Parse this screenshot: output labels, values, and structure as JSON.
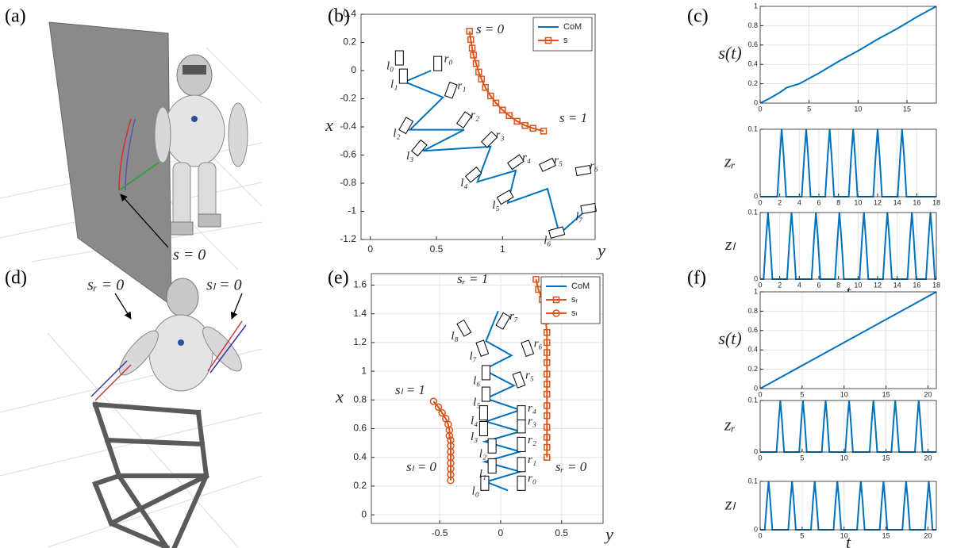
{
  "panels": {
    "a": {
      "label": "(a)",
      "annotation": "s = 0"
    },
    "d": {
      "label": "(d)",
      "annotations": [
        "sᵣ = 0",
        "sₗ = 0"
      ]
    }
  },
  "chart_data": [
    {
      "type": "line",
      "panel": "(b)",
      "xlabel": "y",
      "ylabel": "x",
      "xlim": [
        -0.07,
        1.7
      ],
      "ylim": [
        -1.2,
        0.4
      ],
      "xticks": [
        0,
        0.5,
        1
      ],
      "yticks": [
        -1.2,
        -1,
        -0.8,
        -0.6,
        -0.4,
        -0.2,
        0,
        0.2,
        0.4
      ],
      "grid": false,
      "legend": "northeast",
      "series": [
        {
          "name": "CoM",
          "color": "#0072bd",
          "x": [
            0.46,
            0.26,
            0.55,
            0.3,
            0.71,
            0.4,
            0.91,
            0.81,
            1.1,
            1.04,
            1.34,
            1.43,
            1.67
          ],
          "values": [
            0.0,
            -0.08,
            -0.19,
            -0.42,
            -0.42,
            -0.57,
            -0.54,
            -0.79,
            -0.71,
            -0.94,
            -0.84,
            -1.16,
            -0.96
          ]
        },
        {
          "name": "s",
          "color": "#d95319",
          "marker": "square",
          "x": [
            0.75,
            0.76,
            0.77,
            0.78,
            0.8,
            0.82,
            0.84,
            0.87,
            0.91,
            0.95,
            1.0,
            1.05,
            1.11,
            1.17,
            1.23,
            1.31
          ],
          "values": [
            0.28,
            0.22,
            0.16,
            0.11,
            0.05,
            -0.01,
            -0.06,
            -0.12,
            -0.18,
            -0.23,
            -0.28,
            -0.32,
            -0.36,
            -0.39,
            -0.41,
            -0.43
          ]
        }
      ],
      "footsteps": {
        "labels": [
          "l₀",
          "r₀",
          "l₁",
          "r₁",
          "l₂",
          "r₂",
          "l₃",
          "r₃",
          "l₄",
          "r₄",
          "l₅",
          "r₅",
          "l₆",
          "r₆",
          "l₇"
        ],
        "x": [
          0.22,
          0.51,
          0.25,
          0.61,
          0.27,
          0.71,
          0.37,
          0.9,
          0.78,
          1.1,
          1.02,
          1.34,
          1.41,
          1.61,
          1.65
        ],
        "values": [
          0.09,
          0.05,
          -0.04,
          -0.14,
          -0.39,
          -0.35,
          -0.55,
          -0.49,
          -0.74,
          -0.65,
          -0.9,
          -0.67,
          -1.15,
          -0.71,
          -0.98
        ],
        "angle": [
          0,
          0,
          0,
          20,
          30,
          35,
          40,
          45,
          50,
          55,
          60,
          65,
          75,
          80,
          80
        ]
      },
      "annotations": [
        "s = 0",
        "s = 1"
      ]
    },
    {
      "type": "line",
      "panel": "(c)",
      "ylabel": "s(t)",
      "xlim": [
        0,
        18
      ],
      "ylim": [
        0,
        1
      ],
      "xticks": [
        0,
        5,
        10,
        15
      ],
      "yticks": [
        0,
        0.2,
        0.4,
        0.6,
        0.8,
        1
      ],
      "grid": true,
      "series": [
        {
          "color": "#0072bd",
          "x": [
            0,
            1,
            2,
            2.7,
            4,
            6,
            8,
            10,
            12,
            14,
            16,
            18
          ],
          "values": [
            0,
            0.05,
            0.11,
            0.16,
            0.2,
            0.31,
            0.43,
            0.54,
            0.66,
            0.77,
            0.89,
            1
          ]
        }
      ]
    },
    {
      "type": "line",
      "ylabel": "zᵣ",
      "xlim": [
        0,
        18
      ],
      "ylim": [
        0,
        0.1
      ],
      "xticks": [
        0,
        2,
        4,
        6,
        8,
        10,
        12,
        14,
        16,
        18
      ],
      "yticks": [
        0,
        0.1
      ],
      "grid": true,
      "series": [
        {
          "color": "#0072bd",
          "x": [
            0,
            1.75,
            2.0,
            2.2,
            2.4,
            2.65,
            4.25,
            4.5,
            4.7,
            4.9,
            5.15,
            6.65,
            6.9,
            7.1,
            7.3,
            7.55,
            9.05,
            9.3,
            9.5,
            9.7,
            9.95,
            11.55,
            11.8,
            12.0,
            12.2,
            12.45,
            14.05,
            14.3,
            14.5,
            14.7,
            14.95,
            18
          ],
          "values": [
            0,
            0,
            0.06,
            0.1,
            0.06,
            0,
            0,
            0.06,
            0.1,
            0.06,
            0,
            0,
            0.06,
            0.1,
            0.06,
            0,
            0,
            0.06,
            0.1,
            0.06,
            0,
            0,
            0.06,
            0.1,
            0.06,
            0,
            0,
            0.06,
            0.1,
            0.06,
            0,
            0
          ]
        }
      ]
    },
    {
      "type": "line",
      "ylabel": "zₗ",
      "xlabel": "t",
      "xlim": [
        0,
        18
      ],
      "ylim": [
        0,
        0.1
      ],
      "xticks": [
        0,
        2,
        4,
        6,
        8,
        10,
        12,
        14,
        16,
        18
      ],
      "yticks": [
        0,
        0.1
      ],
      "grid": true,
      "series": [
        {
          "color": "#0072bd",
          "x": [
            0,
            0.35,
            0.6,
            0.8,
            1.0,
            1.25,
            2.75,
            3.0,
            3.2,
            3.4,
            3.65,
            5.25,
            5.5,
            5.7,
            5.9,
            6.15,
            7.65,
            7.9,
            8.1,
            8.3,
            8.55,
            10.15,
            10.4,
            10.6,
            10.8,
            11.05,
            12.55,
            12.8,
            13.0,
            13.2,
            13.45,
            15.05,
            15.3,
            15.5,
            15.7,
            15.95,
            16.95,
            17.2,
            17.4,
            17.6,
            17.85,
            18
          ],
          "values": [
            0,
            0,
            0.06,
            0.1,
            0.06,
            0,
            0,
            0.06,
            0.1,
            0.06,
            0,
            0,
            0.06,
            0.1,
            0.06,
            0,
            0,
            0.06,
            0.1,
            0.06,
            0,
            0,
            0.06,
            0.1,
            0.06,
            0,
            0,
            0.06,
            0.1,
            0.06,
            0,
            0,
            0.06,
            0.1,
            0.06,
            0,
            0,
            0.06,
            0.1,
            0.06,
            0,
            0
          ]
        }
      ]
    },
    {
      "type": "line",
      "panel": "(e)",
      "xlabel": "y",
      "ylabel": "x",
      "xlim": [
        -1.06,
        0.84
      ],
      "ylim": [
        -0.06,
        1.68
      ],
      "xticks": [
        -0.5,
        0,
        0.5
      ],
      "yticks": [
        0,
        0.2,
        0.4,
        0.6,
        0.8,
        1,
        1.2,
        1.4,
        1.6
      ],
      "grid": true,
      "legend": "northeast",
      "series": [
        {
          "name": "CoM",
          "color": "#0072bd",
          "x": [
            0.06,
            -0.12,
            0.16,
            -0.13,
            0.16,
            -0.13,
            0.16,
            -0.12,
            0.16,
            -0.12,
            0.11,
            -0.14,
            0.09,
            -0.12,
            -0.02
          ],
          "values": [
            0.17,
            0.23,
            0.3,
            0.37,
            0.44,
            0.51,
            0.58,
            0.65,
            0.73,
            0.81,
            0.9,
            1.01,
            1.11,
            1.21,
            1.42
          ]
        },
        {
          "name": "sᵣ",
          "color": "#d95319",
          "marker": "square",
          "x": [
            0.29,
            0.31,
            0.34,
            0.36,
            0.37,
            0.38,
            0.38,
            0.38,
            0.38,
            0.38,
            0.38,
            0.38,
            0.38,
            0.38,
            0.38,
            0.38,
            0.38,
            0.38
          ],
          "values": [
            1.64,
            1.57,
            1.5,
            1.42,
            1.35,
            1.27,
            1.2,
            1.13,
            1.06,
            0.98,
            0.91,
            0.84,
            0.76,
            0.69,
            0.61,
            0.54,
            0.47,
            0.4
          ]
        },
        {
          "name": "sₗ",
          "color": "#d95319",
          "marker": "circle",
          "x": [
            -0.55,
            -0.51,
            -0.48,
            -0.45,
            -0.43,
            -0.42,
            -0.42,
            -0.41,
            -0.41,
            -0.41,
            -0.41,
            -0.41,
            -0.41,
            -0.41,
            -0.41
          ],
          "values": [
            0.79,
            0.75,
            0.71,
            0.67,
            0.63,
            0.59,
            0.55,
            0.52,
            0.48,
            0.44,
            0.4,
            0.36,
            0.32,
            0.28,
            0.24
          ]
        }
      ],
      "footsteps": {
        "labels": [
          "l₀",
          "r₀",
          "l₁",
          "r₁",
          "l₂",
          "r₂",
          "l₃",
          "r₃",
          "l₄",
          "r₄",
          "l₅",
          "r₅",
          "l₆",
          "r₆",
          "l₇",
          "r₇",
          "l₈"
        ],
        "x": [
          -0.13,
          0.17,
          -0.07,
          0.17,
          -0.07,
          0.17,
          -0.14,
          0.17,
          -0.14,
          0.17,
          -0.12,
          0.15,
          -0.12,
          0.22,
          -0.15,
          0.02,
          -0.3
        ],
        "values": [
          0.22,
          0.22,
          0.34,
          0.35,
          0.48,
          0.49,
          0.6,
          0.62,
          0.71,
          0.71,
          0.84,
          0.94,
          0.99,
          1.16,
          1.16,
          1.35,
          1.3
        ],
        "angle": [
          0,
          0,
          0,
          0,
          0,
          0,
          0,
          0,
          0,
          0,
          0,
          -20,
          0,
          -20,
          -20,
          30,
          -30
        ]
      },
      "annotations": [
        "sᵣ = 1",
        "sₗ = 1",
        "sₗ = 0",
        "sᵣ = 0"
      ]
    },
    {
      "type": "line",
      "panel": "(f)",
      "ylabel": "s(t)",
      "xlim": [
        0,
        21
      ],
      "ylim": [
        0,
        1
      ],
      "xticks": [
        0,
        5,
        10,
        15,
        20
      ],
      "yticks": [
        0,
        0.2,
        0.4,
        0.6,
        0.8,
        1
      ],
      "grid": true,
      "series": [
        {
          "color": "#0072bd",
          "x": [
            0,
            21
          ],
          "values": [
            0,
            1
          ]
        }
      ]
    },
    {
      "type": "line",
      "ylabel": "zᵣ",
      "xlim": [
        0,
        21
      ],
      "ylim": [
        0,
        0.1
      ],
      "xticks": [
        0,
        5,
        10,
        15,
        20
      ],
      "yticks": [
        0,
        0.1
      ],
      "grid": true,
      "series": [
        {
          "color": "#0072bd",
          "x": [
            0,
            1.95,
            2.2,
            2.4,
            2.6,
            2.85,
            4.65,
            4.9,
            5.1,
            5.3,
            5.55,
            7.35,
            7.6,
            7.8,
            8.0,
            8.25,
            10.15,
            10.4,
            10.6,
            10.8,
            11.05,
            13.05,
            13.3,
            13.5,
            13.7,
            13.95,
            15.65,
            15.9,
            16.1,
            16.3,
            16.55,
            18.45,
            18.7,
            18.9,
            19.1,
            19.35,
            21
          ],
          "values": [
            0,
            0,
            0.06,
            0.1,
            0.06,
            0,
            0,
            0.06,
            0.1,
            0.06,
            0,
            0,
            0.06,
            0.1,
            0.06,
            0,
            0,
            0.06,
            0.1,
            0.06,
            0,
            0,
            0.06,
            0.1,
            0.06,
            0,
            0,
            0.06,
            0.1,
            0.06,
            0,
            0,
            0.06,
            0.1,
            0.06,
            0,
            0
          ]
        }
      ]
    },
    {
      "type": "line",
      "ylabel": "zₗ",
      "xlabel": "t",
      "xlim": [
        0,
        21
      ],
      "ylim": [
        0,
        0.1
      ],
      "xticks": [
        0,
        5,
        10,
        15,
        20
      ],
      "yticks": [
        0,
        0.1
      ],
      "grid": true,
      "series": [
        {
          "color": "#0072bd",
          "x": [
            0,
            0.55,
            0.8,
            1.0,
            1.2,
            1.45,
            3.35,
            3.6,
            3.8,
            4.0,
            4.25,
            6.05,
            6.3,
            6.5,
            6.7,
            6.95,
            8.75,
            9.0,
            9.2,
            9.4,
            9.65,
            11.55,
            11.8,
            12.0,
            12.2,
            12.45,
            14.25,
            14.5,
            14.7,
            14.9,
            15.15,
            16.95,
            17.2,
            17.4,
            17.6,
            17.85,
            19.65,
            19.9,
            20.1,
            20.3,
            20.55,
            21
          ],
          "values": [
            0,
            0,
            0.06,
            0.1,
            0.06,
            0,
            0,
            0.06,
            0.1,
            0.06,
            0,
            0,
            0.06,
            0.1,
            0.06,
            0,
            0,
            0.06,
            0.1,
            0.06,
            0,
            0,
            0.06,
            0.1,
            0.06,
            0,
            0,
            0.06,
            0.1,
            0.06,
            0,
            0,
            0.06,
            0.1,
            0.06,
            0,
            0,
            0.06,
            0.1,
            0.06,
            0,
            0
          ]
        }
      ]
    }
  ]
}
